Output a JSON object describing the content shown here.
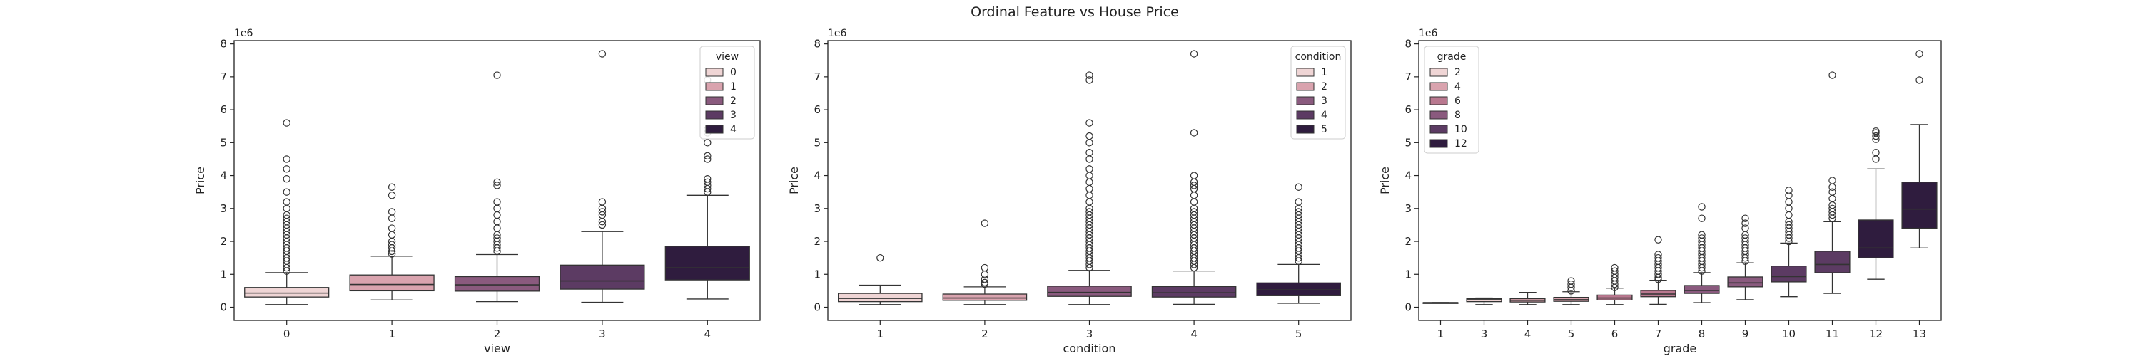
{
  "suptitle": "Ordinal Feature vs House Price",
  "palette": [
    "#efd5d5",
    "#d9a3ae",
    "#b9788f",
    "#8a5a7e",
    "#5c3b63",
    "#2f1c3e"
  ],
  "chart_data": [
    {
      "type": "box",
      "xlabel": "view",
      "ylabel": "Price",
      "y_scale_label": "1e6",
      "ylim": [
        -0.4,
        8.1
      ],
      "yticks": [
        0,
        1,
        2,
        3,
        4,
        5,
        6,
        7,
        8
      ],
      "grid": false,
      "legend": {
        "title": "view",
        "placement": "top-right",
        "entries": [
          "0",
          "1",
          "2",
          "3",
          "4"
        ]
      },
      "categories": [
        "0",
        "1",
        "2",
        "3",
        "4"
      ],
      "boxes": [
        {
          "category": "0",
          "whisker_low": 0.08,
          "q1": 0.31,
          "median": 0.43,
          "q3": 0.6,
          "whisker_high": 1.05,
          "outliers": [
            1.1,
            1.2,
            1.3,
            1.4,
            1.5,
            1.6,
            1.7,
            1.8,
            1.9,
            2.0,
            2.1,
            2.2,
            2.3,
            2.4,
            2.5,
            2.6,
            2.7,
            2.8,
            3.0,
            3.2,
            3.5,
            3.9,
            4.2,
            4.5,
            5.6
          ]
        },
        {
          "category": "1",
          "whisker_low": 0.22,
          "q1": 0.5,
          "median": 0.69,
          "q3": 0.98,
          "whisker_high": 1.55,
          "outliers": [
            1.62,
            1.7,
            1.8,
            1.9,
            2.0,
            2.2,
            2.4,
            2.7,
            2.9,
            3.4,
            3.65
          ]
        },
        {
          "category": "2",
          "whisker_low": 0.17,
          "q1": 0.49,
          "median": 0.68,
          "q3": 0.93,
          "whisker_high": 1.6,
          "outliers": [
            1.7,
            1.8,
            1.9,
            2.0,
            2.1,
            2.2,
            2.4,
            2.6,
            2.8,
            3.0,
            3.2,
            3.7,
            3.8,
            7.05
          ]
        },
        {
          "category": "3",
          "whisker_low": 0.15,
          "q1": 0.55,
          "median": 0.8,
          "q3": 1.28,
          "whisker_high": 2.3,
          "outliers": [
            2.5,
            2.6,
            2.8,
            2.9,
            3.0,
            3.2,
            7.7
          ]
        },
        {
          "category": "4",
          "whisker_low": 0.25,
          "q1": 0.83,
          "median": 1.2,
          "q3": 1.85,
          "whisker_high": 3.4,
          "outliers": [
            3.5,
            3.6,
            3.7,
            3.8,
            3.9,
            4.5,
            4.6,
            5.0,
            5.3,
            5.4,
            6.9
          ]
        }
      ]
    },
    {
      "type": "box",
      "xlabel": "condition",
      "ylabel": "Price",
      "y_scale_label": "1e6",
      "ylim": [
        -0.4,
        8.1
      ],
      "yticks": [
        0,
        1,
        2,
        3,
        4,
        5,
        6,
        7,
        8
      ],
      "grid": false,
      "legend": {
        "title": "condition",
        "placement": "top-right",
        "entries": [
          "1",
          "2",
          "3",
          "4",
          "5"
        ]
      },
      "categories": [
        "1",
        "2",
        "3",
        "4",
        "5"
      ],
      "boxes": [
        {
          "category": "1",
          "whisker_low": 0.08,
          "q1": 0.17,
          "median": 0.27,
          "q3": 0.42,
          "whisker_high": 0.67,
          "outliers": [
            1.5
          ]
        },
        {
          "category": "2",
          "whisker_low": 0.08,
          "q1": 0.21,
          "median": 0.28,
          "q3": 0.4,
          "whisker_high": 0.62,
          "outliers": [
            0.7,
            0.75,
            0.85,
            1.0,
            1.2,
            2.55
          ]
        },
        {
          "category": "3",
          "whisker_low": 0.08,
          "q1": 0.33,
          "median": 0.45,
          "q3": 0.64,
          "whisker_high": 1.12,
          "outliers": [
            1.2,
            1.3,
            1.4,
            1.5,
            1.6,
            1.7,
            1.8,
            1.9,
            2.0,
            2.1,
            2.2,
            2.3,
            2.4,
            2.5,
            2.6,
            2.7,
            2.8,
            2.9,
            3.0,
            3.2,
            3.4,
            3.6,
            3.8,
            4.0,
            4.2,
            4.5,
            4.7,
            5.0,
            5.2,
            5.6,
            6.9,
            7.05
          ]
        },
        {
          "category": "4",
          "whisker_low": 0.09,
          "q1": 0.31,
          "median": 0.44,
          "q3": 0.63,
          "whisker_high": 1.1,
          "outliers": [
            1.2,
            1.3,
            1.4,
            1.5,
            1.6,
            1.7,
            1.8,
            1.9,
            2.0,
            2.1,
            2.2,
            2.3,
            2.4,
            2.5,
            2.6,
            2.7,
            2.8,
            2.9,
            3.0,
            3.2,
            3.4,
            3.6,
            3.7,
            3.8,
            4.0,
            5.3,
            7.7
          ]
        },
        {
          "category": "5",
          "whisker_low": 0.12,
          "q1": 0.35,
          "median": 0.53,
          "q3": 0.74,
          "whisker_high": 1.3,
          "outliers": [
            1.4,
            1.5,
            1.6,
            1.7,
            1.8,
            1.9,
            2.0,
            2.1,
            2.2,
            2.3,
            2.4,
            2.5,
            2.6,
            2.7,
            2.8,
            2.9,
            3.0,
            3.2,
            3.65
          ]
        }
      ]
    },
    {
      "type": "box",
      "xlabel": "grade",
      "ylabel": "Price",
      "y_scale_label": "1e6",
      "ylim": [
        -0.4,
        8.1
      ],
      "yticks": [
        0,
        1,
        2,
        3,
        4,
        5,
        6,
        7,
        8
      ],
      "grid": false,
      "legend": {
        "title": "grade",
        "placement": "top-left",
        "entries": [
          "2",
          "4",
          "6",
          "8",
          "10",
          "12"
        ]
      },
      "categories": [
        "1",
        "3",
        "4",
        "5",
        "6",
        "7",
        "8",
        "9",
        "10",
        "11",
        "12",
        "13"
      ],
      "boxes": [
        {
          "category": "1",
          "whisker_low": 0.14,
          "q1": 0.14,
          "median": 0.14,
          "q3": 0.14,
          "whisker_high": 0.14,
          "outliers": []
        },
        {
          "category": "3",
          "whisker_low": 0.08,
          "q1": 0.17,
          "median": 0.23,
          "q3": 0.26,
          "whisker_high": 0.28,
          "outliers": []
        },
        {
          "category": "4",
          "whisker_low": 0.08,
          "q1": 0.16,
          "median": 0.21,
          "q3": 0.26,
          "whisker_high": 0.45,
          "outliers": []
        },
        {
          "category": "5",
          "whisker_low": 0.08,
          "q1": 0.18,
          "median": 0.23,
          "q3": 0.3,
          "whisker_high": 0.47,
          "outliers": [
            0.5,
            0.6,
            0.7,
            0.8
          ]
        },
        {
          "category": "6",
          "whisker_low": 0.08,
          "q1": 0.22,
          "median": 0.28,
          "q3": 0.37,
          "whisker_high": 0.58,
          "outliers": [
            0.6,
            0.7,
            0.8,
            0.9,
            1.0,
            1.1,
            1.2
          ]
        },
        {
          "category": "7",
          "whisker_low": 0.09,
          "q1": 0.32,
          "median": 0.4,
          "q3": 0.51,
          "whisker_high": 0.82,
          "outliers": [
            0.85,
            0.9,
            1.0,
            1.1,
            1.2,
            1.3,
            1.4,
            1.5,
            1.6,
            2.05
          ]
        },
        {
          "category": "8",
          "whisker_low": 0.14,
          "q1": 0.42,
          "median": 0.51,
          "q3": 0.66,
          "whisker_high": 1.05,
          "outliers": [
            1.1,
            1.2,
            1.3,
            1.4,
            1.5,
            1.6,
            1.7,
            1.8,
            1.9,
            2.0,
            2.1,
            2.2,
            2.7,
            3.05
          ]
        },
        {
          "category": "9",
          "whisker_low": 0.23,
          "q1": 0.62,
          "median": 0.74,
          "q3": 0.92,
          "whisker_high": 1.35,
          "outliers": [
            1.4,
            1.5,
            1.6,
            1.7,
            1.8,
            1.9,
            2.0,
            2.1,
            2.2,
            2.4,
            2.55,
            2.7
          ]
        },
        {
          "category": "10",
          "whisker_low": 0.32,
          "q1": 0.77,
          "median": 0.93,
          "q3": 1.25,
          "whisker_high": 1.95,
          "outliers": [
            2.0,
            2.1,
            2.2,
            2.3,
            2.4,
            2.5,
            2.6,
            2.8,
            3.0,
            3.2,
            3.4,
            3.55
          ]
        },
        {
          "category": "11",
          "whisker_low": 0.42,
          "q1": 1.05,
          "median": 1.3,
          "q3": 1.7,
          "whisker_high": 2.6,
          "outliers": [
            2.7,
            2.8,
            2.9,
            3.0,
            3.1,
            3.3,
            3.5,
            3.65,
            3.85,
            7.05
          ]
        },
        {
          "category": "12",
          "whisker_low": 0.85,
          "q1": 1.5,
          "median": 1.8,
          "q3": 2.65,
          "whisker_high": 4.2,
          "outliers": [
            4.5,
            4.7,
            5.1,
            5.2,
            5.3,
            5.35
          ]
        },
        {
          "category": "13",
          "whisker_low": 1.8,
          "q1": 2.4,
          "median": 2.98,
          "q3": 3.8,
          "whisker_high": 5.55,
          "outliers": [
            6.9,
            7.7
          ]
        }
      ]
    }
  ]
}
